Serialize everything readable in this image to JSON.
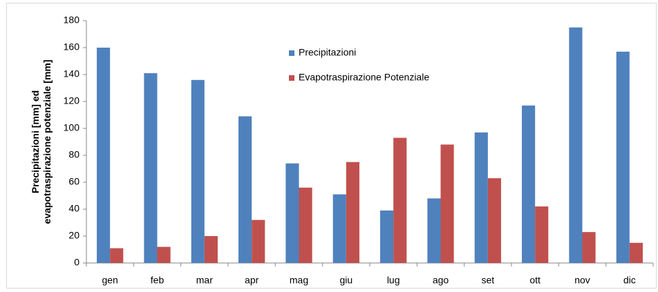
{
  "chart_data": {
    "type": "bar",
    "ylabel": [
      "Precipitazioni [mm] ed",
      "evapotraspirazione potenziale [mm]"
    ],
    "categories": [
      "gen",
      "feb",
      "mar",
      "apr",
      "mag",
      "giu",
      "lug",
      "ago",
      "set",
      "ott",
      "nov",
      "dic"
    ],
    "series": [
      {
        "name": "Precipitazioni",
        "color": "#4f81bd",
        "values": [
          160,
          141,
          136,
          109,
          74,
          51,
          39,
          48,
          97,
          117,
          175,
          157
        ]
      },
      {
        "name": "Evapotraspirazione Potenziale",
        "color": "#c0504d",
        "values": [
          11,
          12,
          20,
          32,
          56,
          75,
          93,
          88,
          63,
          42,
          23,
          15
        ]
      }
    ],
    "ylim": [
      0,
      180
    ],
    "yticks": [
      0,
      20,
      40,
      60,
      80,
      100,
      120,
      140,
      160,
      180
    ],
    "grid": false
  }
}
